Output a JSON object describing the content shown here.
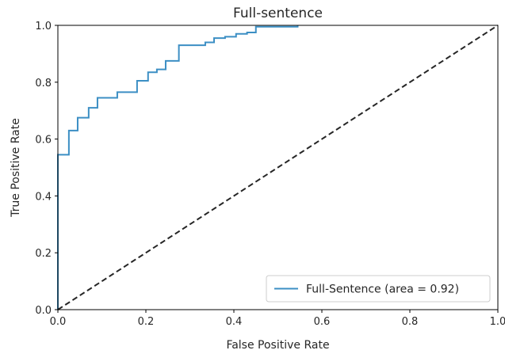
{
  "chart_data": {
    "type": "line",
    "title": "Full-sentence",
    "xlabel": "False Positive Rate",
    "ylabel": "True Positive Rate",
    "xlim": [
      0.0,
      1.0
    ],
    "ylim": [
      0.0,
      1.0
    ],
    "xticks": [
      "0.0",
      "0.2",
      "0.4",
      "0.6",
      "0.8",
      "1.0"
    ],
    "yticks": [
      "0.0",
      "0.2",
      "0.4",
      "0.6",
      "0.8",
      "1.0"
    ],
    "grid": false,
    "legend_position": "lower-right",
    "series": [
      {
        "name": "Full-Sentence (area = 0.92)",
        "color": "#3c8fc4",
        "style": "solid",
        "x": [
          0.0,
          0.0,
          0.025,
          0.025,
          0.045,
          0.045,
          0.07,
          0.07,
          0.09,
          0.09,
          0.135,
          0.135,
          0.18,
          0.18,
          0.205,
          0.205,
          0.225,
          0.225,
          0.245,
          0.245,
          0.275,
          0.275,
          0.335,
          0.335,
          0.355,
          0.355,
          0.38,
          0.38,
          0.405,
          0.405,
          0.43,
          0.43,
          0.45,
          0.45,
          0.545,
          0.545
        ],
        "y": [
          0.0,
          0.545,
          0.545,
          0.63,
          0.63,
          0.675,
          0.675,
          0.71,
          0.71,
          0.745,
          0.745,
          0.765,
          0.765,
          0.805,
          0.805,
          0.835,
          0.835,
          0.845,
          0.845,
          0.875,
          0.875,
          0.93,
          0.93,
          0.94,
          0.94,
          0.955,
          0.955,
          0.96,
          0.96,
          0.97,
          0.97,
          0.975,
          0.975,
          0.995,
          0.995,
          1.0
        ]
      },
      {
        "name": "",
        "color": "#262626",
        "style": "dashed",
        "x": [
          0.0,
          1.0
        ],
        "y": [
          0.0,
          1.0
        ]
      }
    ]
  }
}
